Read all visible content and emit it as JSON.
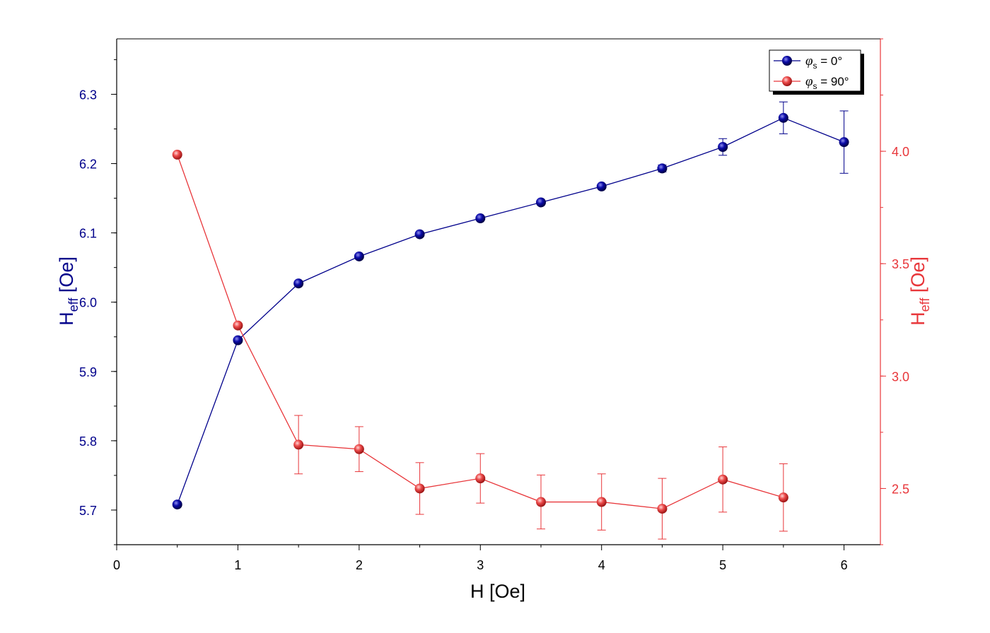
{
  "chart_data": {
    "type": "line",
    "xlabel": "H [Oe]",
    "ylabel_left": {
      "main": "H",
      "sub": "eff",
      "unit": " [Oe]"
    },
    "ylabel_right": {
      "main": "H",
      "sub": "eff",
      "unit": " [Oe]"
    },
    "xlim": [
      0,
      6.3
    ],
    "ylim_left": [
      5.65,
      6.38
    ],
    "ylim_right": [
      2.25,
      4.5
    ],
    "x_ticks": [
      "0",
      "1",
      "2",
      "3",
      "4",
      "5",
      "6"
    ],
    "y_left_ticks": [
      "5.7",
      "5.8",
      "5.9",
      "6.0",
      "6.1",
      "6.2",
      "6.3"
    ],
    "y_right_ticks": [
      "2.5",
      "3.0",
      "3.5",
      "4.0"
    ],
    "legend_position": "top-right",
    "series": [
      {
        "name_prefix": "φ",
        "name_sub": "s",
        "name_suffix": " = 0°",
        "axis": "left",
        "color": "#00008B",
        "x": [
          0.5,
          1,
          1.5,
          2,
          2.5,
          3,
          3.5,
          4,
          4.5,
          5,
          5.5,
          6
        ],
        "y": [
          5.708,
          5.945,
          6.027,
          6.066,
          6.098,
          6.121,
          6.144,
          6.167,
          6.193,
          6.224,
          6.266,
          6.231
        ],
        "err": [
          0.002,
          0.003,
          0.003,
          0.003,
          0.003,
          0.003,
          0.003,
          0.003,
          0.005,
          0.012,
          0.023,
          0.045
        ]
      },
      {
        "name_prefix": "φ",
        "name_sub": "s",
        "name_suffix": " = 90°",
        "axis": "right",
        "color": "#E8363A",
        "x": [
          0.5,
          1,
          1.5,
          2,
          2.5,
          3,
          3.5,
          4,
          4.5,
          5,
          5.5
        ],
        "y": [
          3.985,
          3.225,
          2.695,
          2.675,
          2.5,
          2.545,
          2.44,
          2.44,
          2.41,
          2.54,
          2.46
        ],
        "err": [
          0.005,
          0.005,
          0.13,
          0.1,
          0.115,
          0.11,
          0.12,
          0.125,
          0.135,
          0.145,
          0.15
        ]
      }
    ]
  }
}
